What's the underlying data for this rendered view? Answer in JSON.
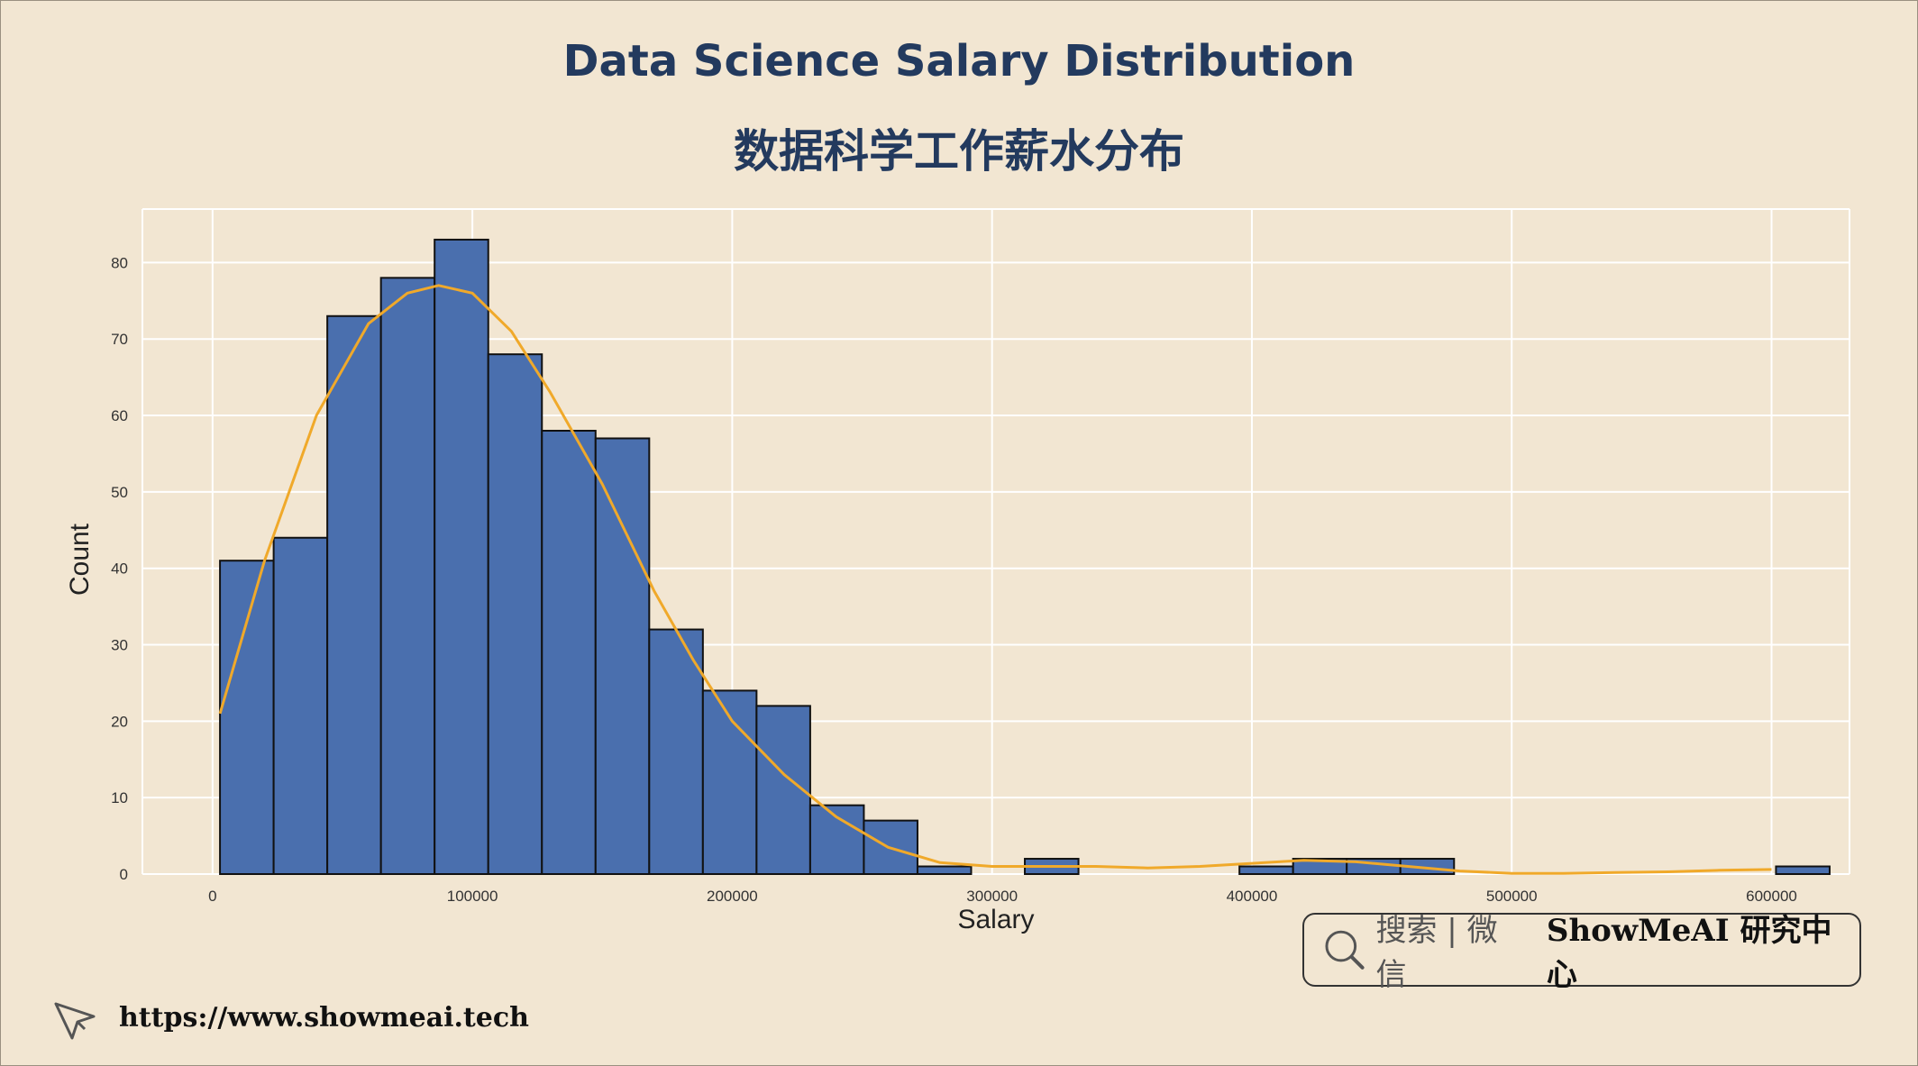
{
  "header": {
    "title_en": "Data Science Salary Distribution",
    "title_cn": "数据科学工作薪水分布"
  },
  "footer": {
    "url": "https://www.showmeai.tech",
    "search_hint": "搜索 | 微信",
    "brand": "ShowMeAI 研究中心"
  },
  "colors": {
    "background": "#f2e6d2",
    "bar_fill": "#4a6fae",
    "bar_edge": "#111111",
    "kde_line": "#f0a92a",
    "title": "#233a5e"
  },
  "chart_data": {
    "type": "bar",
    "title": "",
    "xlabel": "Salary",
    "ylabel": "Count",
    "xlim": [
      -27000,
      630000
    ],
    "ylim": [
      0,
      87
    ],
    "grid": true,
    "x_ticks": [
      0,
      100000,
      200000,
      300000,
      400000,
      500000,
      600000
    ],
    "x_tick_labels": [
      "0",
      "100000",
      "200000",
      "300000",
      "400000",
      "500000",
      "600000"
    ],
    "y_ticks": [
      0,
      10,
      20,
      30,
      40,
      50,
      60,
      70,
      80
    ],
    "y_tick_labels": [
      "0",
      "10",
      "20",
      "30",
      "40",
      "50",
      "60",
      "70",
      "80"
    ],
    "bins": {
      "start": 2859,
      "width": 20650,
      "counts": [
        41,
        44,
        73,
        78,
        83,
        68,
        58,
        57,
        32,
        24,
        22,
        9,
        7,
        1,
        0,
        2,
        0,
        0,
        0,
        1,
        2,
        2,
        2,
        0,
        0,
        0,
        0,
        0,
        0,
        1
      ]
    },
    "kde": {
      "x": [
        2859,
        20000,
        40000,
        60000,
        75000,
        87000,
        100000,
        115000,
        130000,
        150000,
        170000,
        185000,
        200000,
        220000,
        240000,
        260000,
        280000,
        300000,
        320000,
        340000,
        360000,
        380000,
        400000,
        420000,
        440000,
        460000,
        480000,
        500000,
        520000,
        540000,
        560000,
        580000,
        600000
      ],
      "y": [
        21,
        41,
        60,
        72,
        76,
        77,
        76,
        71,
        63,
        51,
        37,
        28,
        20,
        13,
        7.5,
        3.5,
        1.5,
        1.0,
        1.0,
        1.0,
        0.8,
        1.0,
        1.4,
        1.8,
        1.6,
        1.0,
        0.4,
        0.1,
        0.1,
        0.2,
        0.3,
        0.5,
        0.6
      ]
    }
  }
}
